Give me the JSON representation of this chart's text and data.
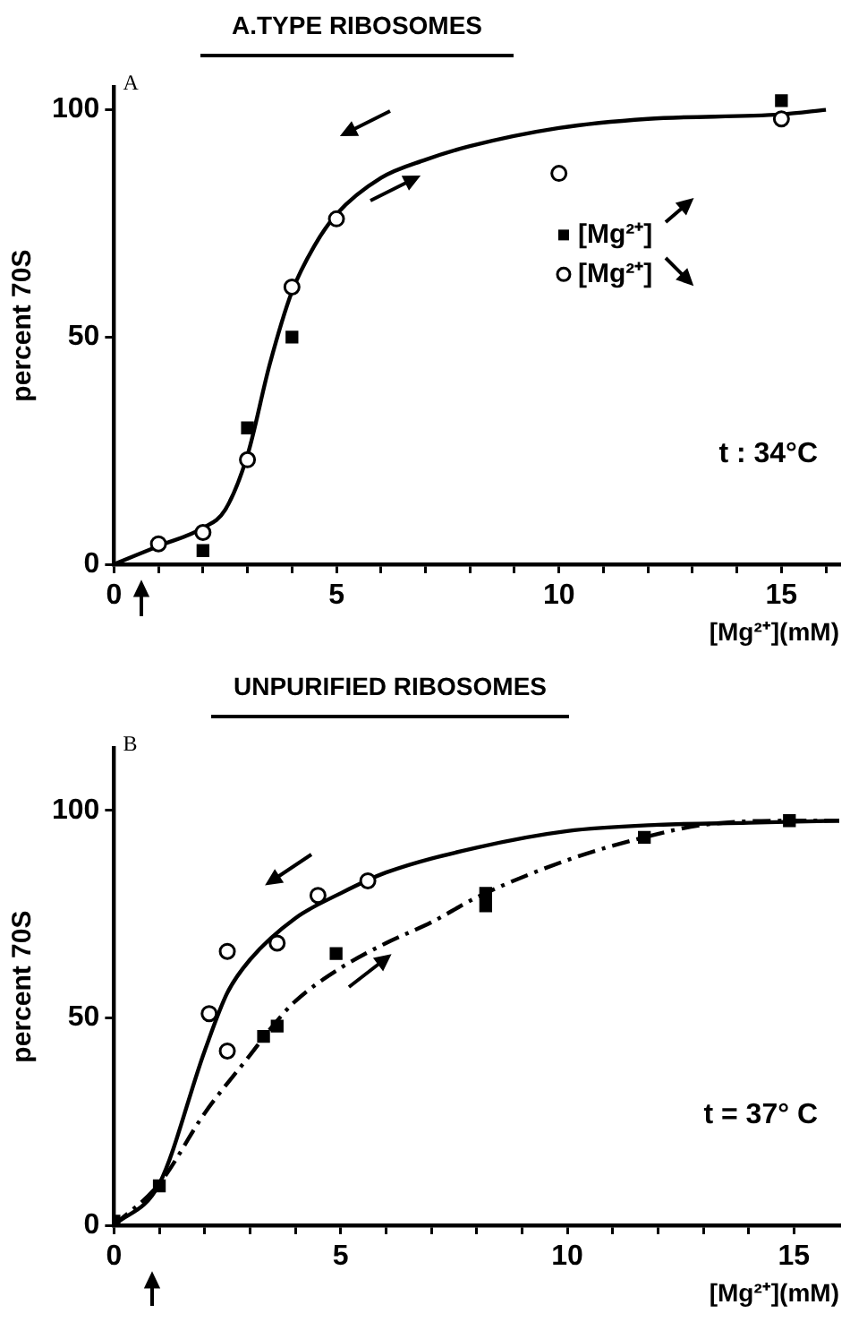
{
  "chart_data": [
    {
      "type": "scatter",
      "title": "A.TYPE RIBOSOMES",
      "xlabel": "[Mg²⁺](mM)",
      "ylabel": "percent 70S",
      "annotations": [
        "A",
        "t : 34°C"
      ],
      "xlim": [
        0,
        16.3
      ],
      "ylim": [
        0,
        105
      ],
      "xticks": [
        0,
        {
          "value": 1,
          "label": null
        },
        {
          "value": 2,
          "label": null
        },
        {
          "value": 3,
          "label": null
        },
        {
          "value": 4,
          "label": null
        },
        5,
        {
          "value": 6,
          "label": null
        },
        {
          "value": 7,
          "label": null
        },
        {
          "value": 8,
          "label": null
        },
        {
          "value": 9,
          "label": null
        },
        10,
        {
          "value": 11,
          "label": null
        },
        {
          "value": 12,
          "label": null
        },
        {
          "value": 13,
          "label": null
        },
        {
          "value": 14,
          "label": null
        },
        15,
        {
          "value": 16,
          "label": null
        }
      ],
      "yticks": [
        0,
        50,
        100
      ],
      "grid": false,
      "legend": "right",
      "series": [
        {
          "name": "[Mg²⁺]",
          "type": "scatter",
          "marker": "square",
          "color": "#000000",
          "x": [
            2,
            3,
            4,
            15
          ],
          "values": [
            3,
            30,
            50,
            102
          ]
        },
        {
          "name": "[Mg²⁺]",
          "type": "scatter",
          "marker": "circle",
          "color": "#000000",
          "x": [
            1,
            2,
            3,
            4,
            5,
            10,
            15
          ],
          "values": [
            4.5,
            7,
            23,
            61,
            76,
            86,
            98
          ]
        },
        {
          "type": "line",
          "marker": "none",
          "line_style": "solid",
          "color": "#000000",
          "x": [
            0,
            1,
            2,
            2.5,
            3,
            3.5,
            4,
            4.5,
            5,
            6,
            7,
            8,
            10,
            12,
            15,
            16
          ],
          "values": [
            0,
            4,
            8,
            12,
            24,
            44,
            60,
            70,
            77,
            85,
            89,
            92,
            96,
            98,
            99,
            100
          ]
        }
      ]
    },
    {
      "type": "scatter",
      "title": "UNPURIFIED RIBOSOMES",
      "xlabel": "[Mg²⁺](mM)",
      "ylabel": "percent 70S",
      "annotations": [
        "B",
        "t = 37° C"
      ],
      "xlim": [
        0,
        16
      ],
      "ylim": [
        0,
        115
      ],
      "xticks": [
        0,
        {
          "value": 1,
          "label": null
        },
        {
          "value": 2,
          "label": null
        },
        {
          "value": 3,
          "label": null
        },
        {
          "value": 4,
          "label": null
        },
        5,
        {
          "value": 6,
          "label": null
        },
        {
          "value": 7,
          "label": null
        },
        {
          "value": 8,
          "label": null
        },
        {
          "value": 9,
          "label": null
        },
        10,
        {
          "value": 11,
          "label": null
        },
        {
          "value": 12,
          "label": null
        },
        {
          "value": 13,
          "label": null
        },
        {
          "value": 14,
          "label": null
        },
        15
      ],
      "yticks": [
        0,
        50,
        100
      ],
      "grid": false,
      "series": [
        {
          "type": "scatter",
          "marker": "circle",
          "color": "#000000",
          "x": [
            2.1,
            2.5,
            2.5,
            3.6,
            4.5,
            5.6
          ],
          "values": [
            51,
            66,
            42,
            68,
            79.5,
            83
          ]
        },
        {
          "type": "scatter",
          "marker": "square",
          "color": "#000000",
          "x": [
            0,
            1,
            3.3,
            3.6,
            4.9,
            8.2,
            8.2,
            11.7,
            14.9
          ],
          "values": [
            1,
            9.5,
            45.5,
            48,
            65.5,
            80,
            77,
            93.5,
            97.5
          ]
        },
        {
          "type": "line",
          "marker": "none",
          "line_style": "solid",
          "color": "#000000",
          "x": [
            0,
            1,
            2,
            2.5,
            3,
            4,
            5,
            6,
            8,
            10,
            12,
            14,
            16
          ],
          "values": [
            0,
            10,
            42,
            56,
            64,
            74,
            80,
            85,
            91,
            95,
            96.5,
            97,
            97.5
          ]
        },
        {
          "type": "line",
          "marker": "none",
          "line_style": "dashed",
          "color": "#000000",
          "x": [
            0,
            1,
            2,
            3,
            3.5,
            4,
            5,
            6,
            7,
            8,
            10,
            11.7,
            13,
            15,
            16
          ],
          "values": [
            0,
            10,
            27,
            41,
            48,
            54,
            62,
            68,
            73,
            79,
            88,
            93.5,
            96.5,
            97.5,
            97.5
          ]
        }
      ]
    }
  ]
}
